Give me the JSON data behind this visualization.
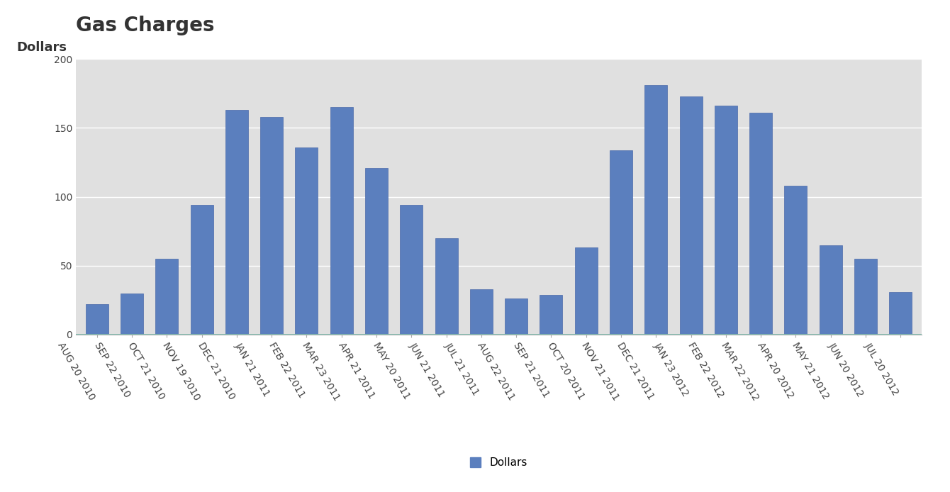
{
  "title": "Gas Charges",
  "ylabel": "Dollars",
  "categories": [
    "AUG 20 2010",
    "SEP 22 2010",
    "OCT 21 2010",
    "NOV 19 2010",
    "DEC 21 2010",
    "JAN 21 2011",
    "FEB 22 2011",
    "MAR 23 2011",
    "APR 21 2011",
    "MAY 20 2011",
    "JUN 21 2011",
    "JUL 21 2011",
    "AUG 22 2011",
    "SEP 21 2011",
    "OCT 20 2011",
    "NOV 21 2011",
    "DEC 21 2011",
    "JAN 23 2012",
    "FEB 22 2012",
    "MAR 22 2012",
    "APR 20 2012",
    "MAY 21 2012",
    "JUN 20 2012",
    "JUL 20 2012"
  ],
  "values": [
    22,
    30,
    55,
    94,
    163,
    158,
    136,
    165,
    121,
    94,
    70,
    33,
    26,
    29,
    63,
    134,
    181,
    173,
    166,
    161,
    108,
    65,
    55,
    31
  ],
  "bar_color": "#5b7fbe",
  "bar_edge_color": "#4a6aaa",
  "ylim": [
    0,
    200
  ],
  "yticks": [
    0,
    50,
    100,
    150,
    200
  ],
  "plot_bg_color": "#e0e0e0",
  "outer_bg_color": "#ffffff",
  "title_fontsize": 20,
  "tick_fontsize": 10,
  "legend_label": "Dollars",
  "legend_fontsize": 11,
  "xlabel_rotation": -60,
  "bar_width": 0.65
}
